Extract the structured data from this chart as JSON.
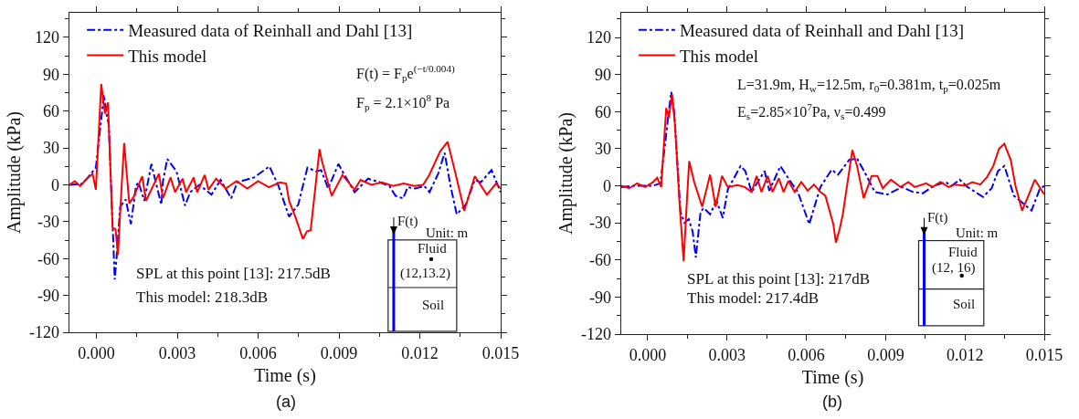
{
  "chart_data": [
    {
      "type": "line",
      "xlabel": "Time (s)",
      "ylabel": "Amplitude (kPa)",
      "xlim": [
        -0.001,
        0.015
      ],
      "ylim": [
        -120,
        140
      ],
      "xticks": [
        {
          "value": 0,
          "label": "0.000"
        },
        {
          "value": 0.003,
          "label": "0.003"
        },
        {
          "value": 0.006,
          "label": "0.006"
        },
        {
          "value": 0.009,
          "label": "0.009"
        },
        {
          "value": 0.012,
          "label": "0.012"
        },
        {
          "value": 0.015,
          "label": "0.015"
        }
      ],
      "yticks": [
        -120,
        -90,
        -60,
        -30,
        0,
        30,
        60,
        90,
        120
      ],
      "grid": false,
      "legend": "top left",
      "marker": "none",
      "series": [
        {
          "name": "Measured data of Reinhall and Dahl [13]",
          "color": "#0000ff",
          "line_style": "dashdot",
          "x": [
            -0.001,
            -0.0005,
            -2e-05,
            0.00028,
            0.00037,
            0.00046,
            0.00068,
            0.00077,
            0.00088,
            0.00098,
            0.00109,
            0.00128,
            0.00147,
            0.00156,
            0.00178,
            0.00204,
            0.00235,
            0.00241,
            0.00247,
            0.00263,
            0.00297,
            0.00329,
            0.00348,
            0.00382,
            0.00427,
            0.00461,
            0.005,
            0.00523,
            0.00585,
            0.00642,
            0.00676,
            0.00715,
            0.00749,
            0.00783,
            0.00815,
            0.00834,
            0.0086,
            0.00898,
            0.00918,
            0.00958,
            0.01008,
            0.01053,
            0.01087,
            0.0111,
            0.01138,
            0.01155,
            0.01183,
            0.01217,
            0.01236,
            0.01268,
            0.01292,
            0.01314,
            0.01337,
            0.01371,
            0.01404,
            0.01426,
            0.01466,
            0.015
          ],
          "values": [
            0,
            1,
            14,
            73,
            58,
            49,
            -77,
            -54,
            -18,
            -15,
            -12,
            -32,
            -1,
            2,
            -13,
            17,
            -11,
            -16,
            3,
            21,
            11,
            -17,
            -6,
            0,
            -8,
            4,
            -11,
            2,
            6,
            15,
            -1,
            -26,
            -16,
            14,
            11,
            12,
            -3,
            17,
            9,
            -6,
            5,
            2,
            -1,
            -9,
            -11,
            -2,
            -3,
            -1,
            -6,
            9,
            26,
            -1,
            -24,
            -16,
            4,
            2,
            12,
            -6
          ]
        },
        {
          "name": "This model",
          "color": "#ff0000",
          "line_style": "solid",
          "x": [
            -0.001,
            -0.0008,
            -0.0006,
            -0.0004,
            -0.00014,
            -2e-05,
            0.00018,
            0.00032,
            0.00043,
            0.0006,
            0.00071,
            0.0008,
            0.00094,
            0.00103,
            0.00122,
            0.00138,
            0.0017,
            0.00184,
            0.00232,
            0.00247,
            0.00275,
            0.00292,
            0.0032,
            0.00333,
            0.00361,
            0.00374,
            0.00402,
            0.00416,
            0.00444,
            0.0048,
            0.0052,
            0.0056,
            0.006,
            0.0064,
            0.00681,
            0.00704,
            0.00715,
            0.00738,
            0.00766,
            0.00781,
            0.00795,
            0.00828,
            0.00837,
            0.00873,
            0.00913,
            0.00958,
            0.0098,
            0.0102,
            0.0106,
            0.011,
            0.0114,
            0.0118,
            0.01212,
            0.01235,
            0.01275,
            0.01303,
            0.01326,
            0.01365,
            0.01404,
            0.01449,
            0.01483,
            0.015
          ],
          "values": [
            0,
            3,
            -1,
            4,
            9,
            -4,
            82,
            58,
            67,
            -35,
            -36,
            -57,
            0,
            34,
            -15,
            -10,
            7,
            -13,
            9,
            -11,
            6,
            -6,
            5,
            -6,
            6,
            -6,
            8,
            -4,
            5,
            -3,
            3,
            -3,
            3,
            -2,
            2,
            1,
            -13,
            -26,
            -44,
            -38,
            -37,
            29,
            19,
            -9,
            8,
            -4,
            4,
            0,
            2,
            -1,
            1,
            -1,
            0,
            8,
            27,
            35,
            15,
            -21,
            7,
            -8,
            1,
            -3
          ]
        }
      ],
      "annotations": [
        "F(t) = F$_{p}$e$^{(−t/0.004)}$",
        "F$_{p}$ = 2.1×10$^{8}$ Pa",
        "SPL at this point [13]: 217.5dB",
        "This model: 218.3dB",
        "F(t)",
        "Unit: m",
        "Fluid",
        "(12,13.2)",
        "Soil",
        "(a)"
      ]
    },
    {
      "type": "line",
      "xlabel": "Time (s)",
      "ylabel": "Amplitude (kPa)",
      "xlim": [
        -0.001,
        0.015
      ],
      "ylim": [
        -120,
        140
      ],
      "xticks": [
        {
          "value": 0,
          "label": "0.000"
        },
        {
          "value": 0.003,
          "label": "0.003"
        },
        {
          "value": 0.006,
          "label": "0.006"
        },
        {
          "value": 0.009,
          "label": "0.009"
        },
        {
          "value": 0.012,
          "label": "0.012"
        },
        {
          "value": 0.015,
          "label": "0.015"
        }
      ],
      "yticks": [
        -120,
        -90,
        -60,
        -30,
        0,
        30,
        60,
        90,
        120
      ],
      "grid": false,
      "legend": "top left",
      "marker": "none",
      "series": [
        {
          "name": "Measured data of Reinhall and Dahl [13]",
          "color": "#0000ff",
          "line_style": "dashdot",
          "x": [
            -0.001,
            -0.0005,
            0.0002,
            0.00048,
            0.00067,
            0.00079,
            0.00089,
            0.001,
            0.00124,
            0.00139,
            0.00155,
            0.0017,
            0.00182,
            0.002,
            0.00212,
            0.00236,
            0.0026,
            0.00284,
            0.00303,
            0.00351,
            0.00369,
            0.00393,
            0.00442,
            0.0046,
            0.00502,
            0.00538,
            0.00568,
            0.00611,
            0.00653,
            0.00696,
            0.0072,
            0.00762,
            0.00792,
            0.00823,
            0.00859,
            0.00907,
            0.00962,
            0.01004,
            0.01041,
            0.01083,
            0.01126,
            0.0115,
            0.0118,
            0.0121,
            0.01268,
            0.01301,
            0.01325,
            0.01349,
            0.01385,
            0.01452,
            0.01482,
            0.015
          ],
          "values": [
            -1,
            0,
            0,
            2,
            36,
            59,
            76,
            60,
            -21,
            -30,
            -27,
            -37,
            -58,
            -21,
            -18,
            -23,
            -12,
            -26,
            -3,
            16,
            12,
            -5,
            12,
            -4,
            16,
            4,
            -5,
            -31,
            -1,
            13,
            9,
            21,
            22,
            10,
            -5,
            -7,
            -1,
            -5,
            -6,
            0,
            3,
            0,
            5,
            -1,
            -9,
            -2,
            12,
            16,
            -8,
            -20,
            -3,
            0
          ]
        },
        {
          "name": "This model",
          "color": "#ff0000",
          "line_style": "solid",
          "x": [
            -0.001,
            -0.0007,
            -0.0004,
            -0.0001,
            0.0002,
            0.00036,
            0.00051,
            0.0007,
            0.0008,
            0.00092,
            0.00103,
            0.00121,
            0.00136,
            0.00148,
            0.00157,
            0.00176,
            0.00206,
            0.00236,
            0.00257,
            0.00281,
            0.00303,
            0.00339,
            0.00367,
            0.00393,
            0.00412,
            0.0043,
            0.00454,
            0.00472,
            0.00496,
            0.00514,
            0.00532,
            0.00556,
            0.00581,
            0.00605,
            0.00629,
            0.00653,
            0.00672,
            0.00702,
            0.00712,
            0.00726,
            0.00738,
            0.00774,
            0.00792,
            0.00817,
            0.00847,
            0.00869,
            0.00889,
            0.0092,
            0.00956,
            0.00986,
            0.0101,
            0.01053,
            0.01077,
            0.01107,
            0.01138,
            0.01162,
            0.01198,
            0.01228,
            0.01258,
            0.01283,
            0.01307,
            0.01329,
            0.01349,
            0.01373,
            0.01391,
            0.01416,
            0.0144,
            0.01464,
            0.015
          ],
          "values": [
            0,
            -2,
            2,
            -1,
            3,
            6.5,
            -1,
            63,
            55,
            74,
            50,
            -16,
            -61,
            -13,
            20,
            3,
            -17,
            9,
            -17,
            8,
            -1,
            0.5,
            -1,
            -5,
            8,
            -5,
            8,
            -5,
            6,
            -5,
            4,
            -5,
            3,
            -4,
            1,
            -5,
            -8,
            -31,
            -46,
            -35,
            -23,
            29,
            16,
            -10,
            8,
            8,
            -2,
            5,
            -1,
            3,
            -1,
            2,
            -1,
            3,
            -1,
            1,
            0,
            3,
            1,
            7,
            16,
            30,
            34,
            21,
            0,
            -20,
            -8,
            5,
            -7
          ]
        }
      ],
      "annotations": [
        "L=31.9m, H$_{w}$=12.5m, r$_{0}$=0.381m, t$_{p}$=0.025m",
        "E$_{s}$=2.85×10$^{7}$Pa, ν$_{s}$=0.499",
        "SPL at this point [13]: 217dB",
        "This model: 217.4dB",
        "F(t)",
        "Unit: m",
        "Fluid",
        "(12, 16)",
        "Soil",
        "(b)"
      ]
    }
  ]
}
